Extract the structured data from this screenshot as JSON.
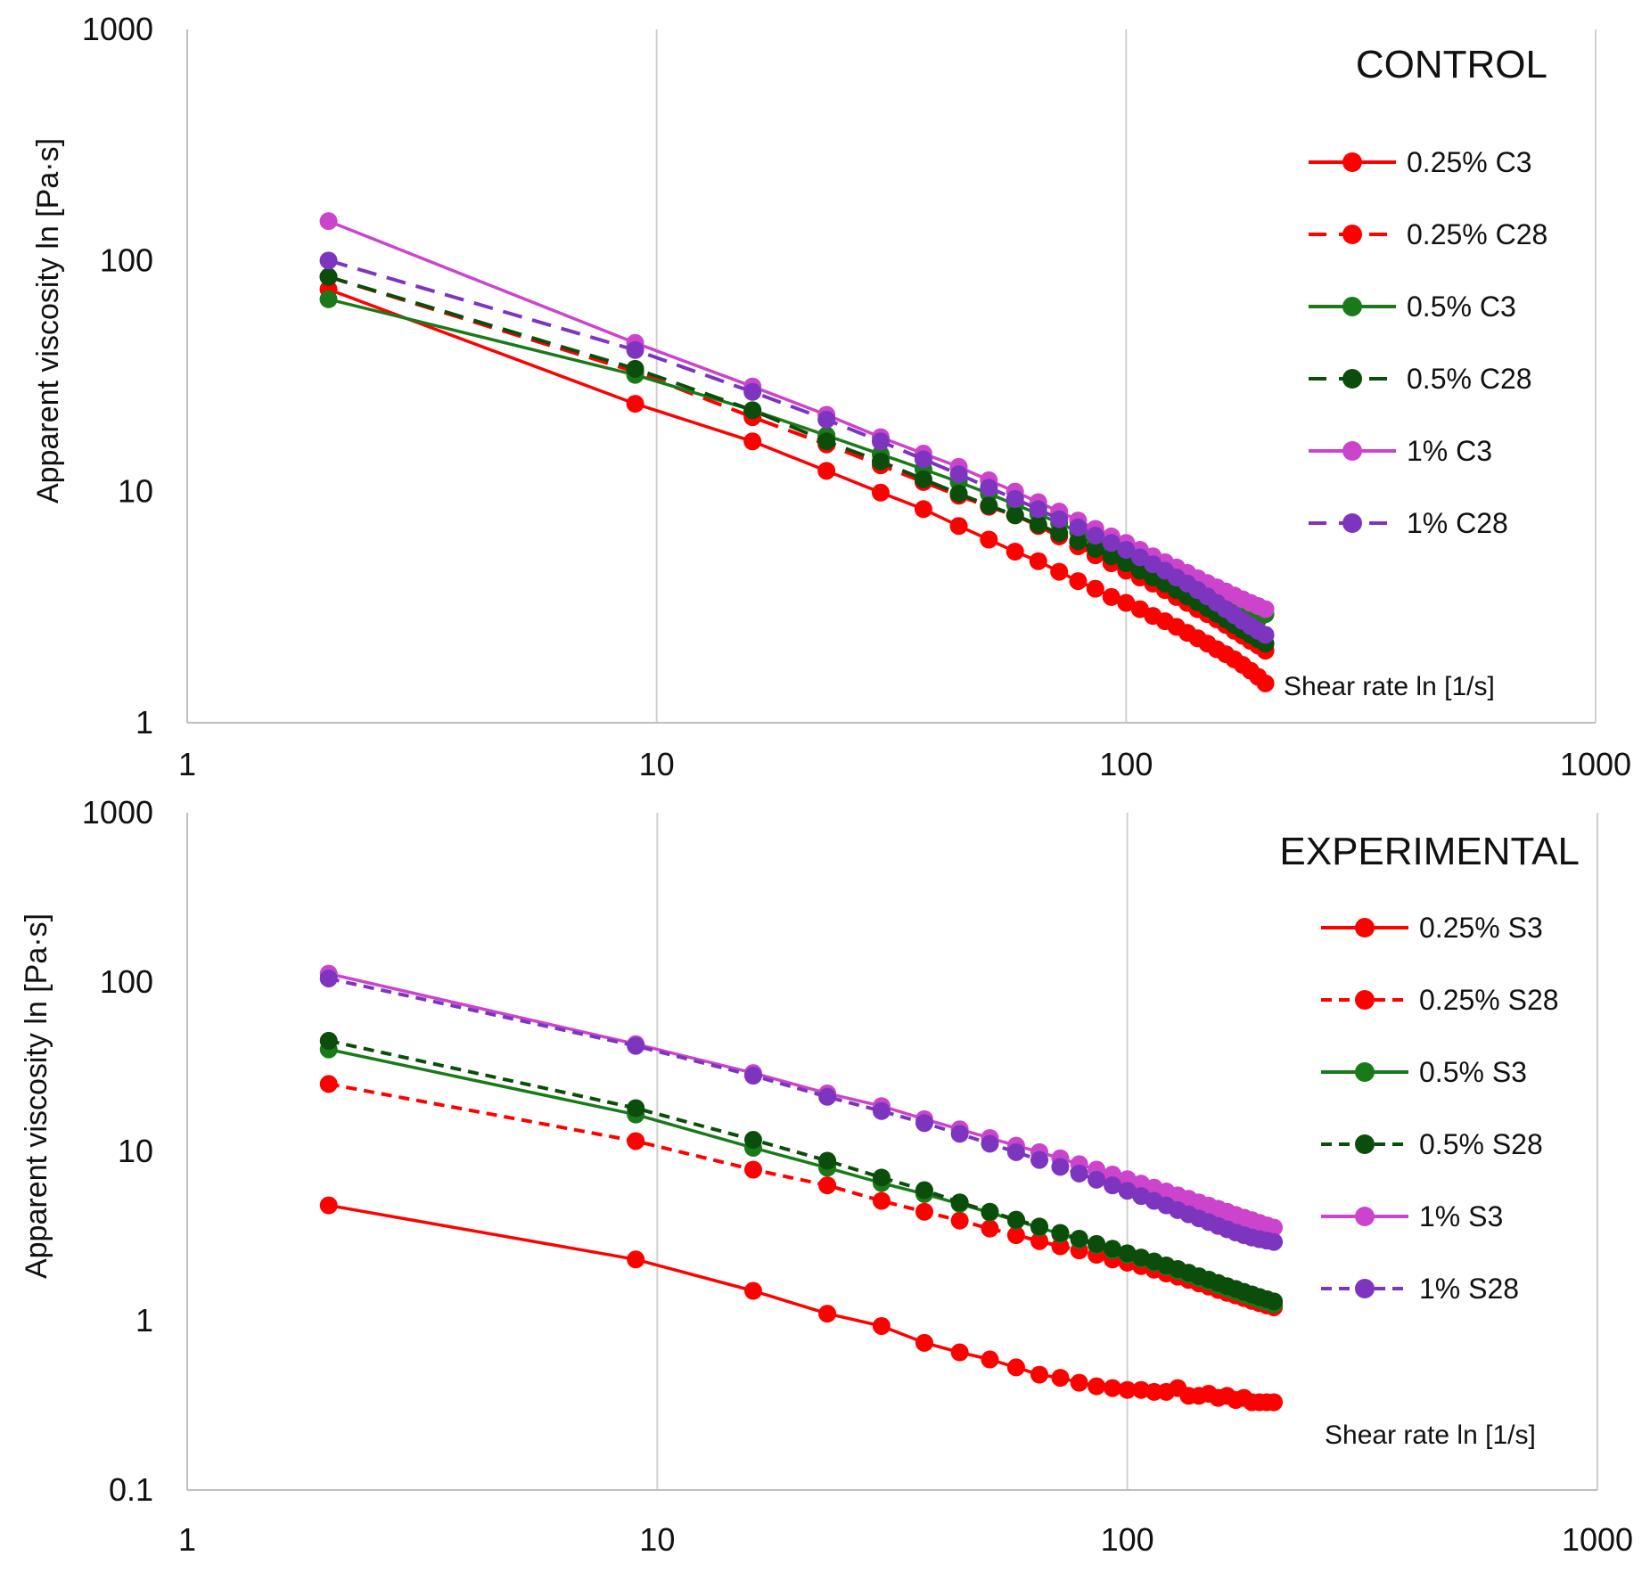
{
  "chart_data": [
    {
      "type": "line",
      "title": "CONTROL",
      "xlabel": "Shear rate ln [1/s]",
      "ylabel": "Apparent viscosity ln [Pa·s]",
      "xscale": "log",
      "yscale": "log",
      "xlim": [
        1,
        1000
      ],
      "ylim": [
        1,
        1000
      ],
      "xticks": [
        "1",
        "10",
        "100",
        "1000"
      ],
      "yticks": [
        "1",
        "10",
        "100",
        "1000"
      ],
      "grid": "vertical",
      "legend_position": "right",
      "series": [
        {
          "name": "0.25% C3",
          "color": "#ff0000",
          "dash": "solid",
          "x": [
            2,
            9,
            16,
            23,
            30,
            37,
            44,
            51,
            58,
            65,
            72,
            79,
            86,
            93,
            100,
            107,
            114,
            121,
            128,
            135,
            142,
            149,
            156,
            163,
            170,
            177,
            184,
            191,
            198
          ],
          "y": [
            75,
            24,
            16.5,
            12.3,
            9.9,
            8.4,
            7.1,
            6.2,
            5.5,
            5.0,
            4.5,
            4.1,
            3.8,
            3.5,
            3.3,
            3.1,
            2.9,
            2.75,
            2.6,
            2.45,
            2.32,
            2.2,
            2.08,
            1.98,
            1.88,
            1.78,
            1.68,
            1.58,
            1.48
          ]
        },
        {
          "name": "0.25% C28",
          "color": "#ff0000",
          "dash": "dashed",
          "x": [
            2,
            9,
            16,
            23,
            30,
            37,
            44,
            51,
            58,
            65,
            72,
            79,
            86,
            93,
            100,
            107,
            114,
            121,
            128,
            135,
            142,
            149,
            156,
            163,
            170,
            177,
            184,
            191,
            198
          ],
          "y": [
            85,
            33,
            21,
            16,
            13,
            11,
            9.6,
            8.6,
            7.9,
            7.1,
            6.4,
            5.8,
            5.3,
            4.9,
            4.55,
            4.25,
            4.0,
            3.75,
            3.5,
            3.3,
            3.1,
            2.95,
            2.8,
            2.65,
            2.5,
            2.38,
            2.26,
            2.16,
            2.05
          ]
        },
        {
          "name": "0.5% C3",
          "color": "#1a7a1a",
          "dash": "solid",
          "x": [
            2,
            9,
            16,
            23,
            30,
            37,
            44,
            51,
            58,
            65,
            72,
            79,
            86,
            93,
            100,
            107,
            114,
            121,
            128,
            135,
            142,
            149,
            156,
            163,
            170,
            177,
            184,
            191,
            198
          ],
          "y": [
            68,
            32,
            22.5,
            17.5,
            14.5,
            12.5,
            11,
            9.8,
            8.8,
            8.0,
            7.3,
            6.7,
            6.2,
            5.8,
            5.4,
            5.05,
            4.75,
            4.45,
            4.2,
            3.98,
            3.78,
            3.6,
            3.42,
            3.27,
            3.13,
            3.0,
            2.9,
            2.8,
            2.95
          ]
        },
        {
          "name": "0.5% C28",
          "color": "#0b4d0b",
          "dash": "dashed",
          "x": [
            2,
            9,
            16,
            23,
            30,
            37,
            44,
            51,
            58,
            65,
            72,
            79,
            86,
            93,
            100,
            107,
            114,
            121,
            128,
            135,
            142,
            149,
            156,
            163,
            170,
            177,
            184,
            191,
            198
          ],
          "y": [
            85,
            34,
            22.5,
            16.5,
            13.5,
            11.3,
            9.8,
            8.7,
            7.9,
            7.2,
            6.6,
            6.1,
            5.65,
            5.25,
            4.9,
            4.55,
            4.25,
            4.0,
            3.75,
            3.52,
            3.32,
            3.13,
            2.96,
            2.8,
            2.65,
            2.52,
            2.4,
            2.3,
            2.2
          ]
        },
        {
          "name": "1% C3",
          "color": "#cc44cc",
          "dash": "solid",
          "x": [
            2,
            9,
            16,
            23,
            30,
            37,
            44,
            51,
            58,
            65,
            72,
            79,
            86,
            93,
            100,
            107,
            114,
            121,
            128,
            135,
            142,
            149,
            156,
            163,
            170,
            177,
            184,
            191,
            198
          ],
          "y": [
            148,
            44,
            28.5,
            21.5,
            17.2,
            14.6,
            12.8,
            11.2,
            10.0,
            9.0,
            8.2,
            7.5,
            6.9,
            6.4,
            6.0,
            5.6,
            5.25,
            4.95,
            4.7,
            4.45,
            4.22,
            4.02,
            3.85,
            3.7,
            3.55,
            3.42,
            3.3,
            3.2,
            3.1
          ]
        },
        {
          "name": "1% C28",
          "color": "#7d35c0",
          "dash": "dashed",
          "x": [
            2,
            9,
            16,
            23,
            30,
            37,
            44,
            51,
            58,
            65,
            72,
            79,
            86,
            93,
            100,
            107,
            114,
            121,
            128,
            135,
            142,
            149,
            156,
            163,
            170,
            177,
            184,
            191,
            198
          ],
          "y": [
            100,
            41,
            27,
            20.5,
            16.5,
            13.8,
            11.9,
            10.4,
            9.3,
            8.4,
            7.6,
            7.0,
            6.45,
            6.0,
            5.6,
            5.2,
            4.85,
            4.55,
            4.25,
            4.0,
            3.75,
            3.52,
            3.3,
            3.1,
            2.92,
            2.76,
            2.62,
            2.5,
            2.4
          ]
        }
      ]
    },
    {
      "type": "line",
      "title": "EXPERIMENTAL",
      "xlabel": "Shear rate ln [1/s]",
      "ylabel": "Apparent viscosity ln [Pa·s]",
      "xscale": "log",
      "yscale": "log",
      "xlim": [
        1,
        1000
      ],
      "ylim": [
        0.1,
        1000
      ],
      "xticks": [
        "1",
        "10",
        "100",
        "1000"
      ],
      "yticks": [
        "0.1",
        "1",
        "10",
        "100",
        "1000"
      ],
      "grid": "vertical",
      "legend_position": "right",
      "series": [
        {
          "name": "0.25% S3",
          "color": "#ff0000",
          "dash": "solid",
          "x": [
            2,
            9,
            16,
            23,
            30,
            37,
            44,
            51,
            58,
            65,
            72,
            79,
            86,
            93,
            100,
            107,
            114,
            121,
            128,
            135,
            142,
            149,
            156,
            163,
            170,
            177,
            184,
            191,
            198,
            205
          ],
          "y": [
            4.8,
            2.3,
            1.5,
            1.1,
            0.93,
            0.74,
            0.65,
            0.59,
            0.53,
            0.48,
            0.46,
            0.43,
            0.41,
            0.4,
            0.39,
            0.39,
            0.38,
            0.38,
            0.4,
            0.36,
            0.36,
            0.37,
            0.35,
            0.36,
            0.34,
            0.35,
            0.33,
            0.33,
            0.33,
            0.33
          ]
        },
        {
          "name": "0.25% S28",
          "color": "#ff0000",
          "dash": "dashed",
          "x": [
            2,
            9,
            16,
            23,
            30,
            37,
            44,
            51,
            58,
            65,
            72,
            79,
            86,
            93,
            100,
            107,
            114,
            121,
            128,
            135,
            142,
            149,
            156,
            163,
            170,
            177,
            184,
            191,
            198,
            205
          ],
          "y": [
            25,
            11.5,
            7.8,
            6.3,
            5.1,
            4.4,
            3.9,
            3.5,
            3.2,
            2.95,
            2.75,
            2.6,
            2.45,
            2.3,
            2.2,
            2.1,
            2.0,
            1.9,
            1.82,
            1.74,
            1.66,
            1.59,
            1.52,
            1.46,
            1.41,
            1.36,
            1.31,
            1.27,
            1.23,
            1.2
          ]
        },
        {
          "name": "0.5% S3",
          "color": "#1a7a1a",
          "dash": "solid",
          "x": [
            2,
            9,
            16,
            23,
            30,
            37,
            44,
            51,
            58,
            65,
            72,
            79,
            86,
            93,
            100,
            107,
            114,
            121,
            128,
            135,
            142,
            149,
            156,
            163,
            170,
            177,
            184,
            191,
            198,
            205
          ],
          "y": [
            40,
            16.5,
            10.5,
            8.0,
            6.5,
            5.6,
            4.9,
            4.35,
            3.9,
            3.55,
            3.25,
            3.0,
            2.8,
            2.6,
            2.45,
            2.32,
            2.2,
            2.08,
            1.97,
            1.87,
            1.78,
            1.7,
            1.62,
            1.55,
            1.49,
            1.43,
            1.38,
            1.33,
            1.29,
            1.25
          ]
        },
        {
          "name": "0.5% S28",
          "color": "#0b4d0b",
          "dash": "dashed",
          "x": [
            2,
            9,
            16,
            23,
            30,
            37,
            44,
            51,
            58,
            65,
            72,
            79,
            86,
            93,
            100,
            107,
            114,
            121,
            128,
            135,
            142,
            149,
            156,
            163,
            170,
            177,
            184,
            191,
            198,
            205
          ],
          "y": [
            45,
            18,
            11.7,
            8.8,
            7.0,
            5.9,
            5.0,
            4.4,
            3.95,
            3.6,
            3.3,
            3.05,
            2.84,
            2.66,
            2.5,
            2.36,
            2.24,
            2.12,
            2.02,
            1.92,
            1.83,
            1.75,
            1.67,
            1.6,
            1.54,
            1.48,
            1.43,
            1.38,
            1.34,
            1.3
          ]
        },
        {
          "name": "1% S3",
          "color": "#cc44cc",
          "dash": "solid",
          "x": [
            2,
            9,
            16,
            23,
            30,
            37,
            44,
            51,
            58,
            65,
            72,
            79,
            86,
            93,
            100,
            107,
            114,
            121,
            128,
            135,
            142,
            149,
            156,
            163,
            170,
            177,
            184,
            191,
            198,
            205
          ],
          "y": [
            112,
            43,
            29,
            22,
            18.5,
            15.5,
            13.5,
            12.0,
            10.8,
            9.9,
            9.1,
            8.4,
            7.8,
            7.3,
            6.85,
            6.45,
            6.1,
            5.8,
            5.5,
            5.25,
            5.0,
            4.78,
            4.58,
            4.4,
            4.22,
            4.06,
            3.92,
            3.78,
            3.66,
            3.55
          ]
        },
        {
          "name": "1% S28",
          "color": "#7d35c0",
          "dash": "dashed",
          "x": [
            2,
            9,
            16,
            23,
            30,
            37,
            44,
            51,
            58,
            65,
            72,
            79,
            86,
            93,
            100,
            107,
            114,
            121,
            128,
            135,
            142,
            149,
            156,
            163,
            170,
            177,
            184,
            191,
            198,
            205
          ],
          "y": [
            105,
            42,
            28,
            21,
            17.3,
            14.7,
            12.7,
            11.1,
            9.9,
            8.9,
            8.1,
            7.4,
            6.8,
            6.3,
            5.85,
            5.45,
            5.1,
            4.8,
            4.5,
            4.25,
            4.02,
            3.82,
            3.63,
            3.47,
            3.32,
            3.2,
            3.1,
            3.03,
            2.97,
            2.92
          ]
        }
      ]
    }
  ]
}
